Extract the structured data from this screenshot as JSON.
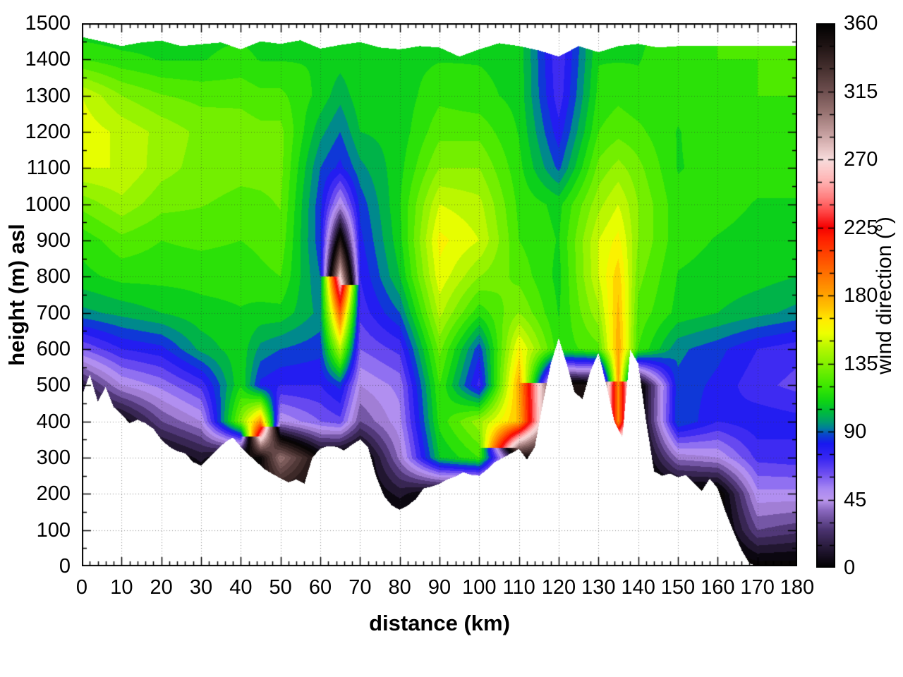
{
  "figure": {
    "background": "#ffffff",
    "border_color": "#000000",
    "grid_color": "#555555",
    "no_data_color": "#ffffff"
  },
  "axes": {
    "x": {
      "label": "distance (km)",
      "min": 0,
      "max": 180,
      "tick_values": [
        0,
        10,
        20,
        30,
        40,
        50,
        60,
        70,
        80,
        90,
        100,
        110,
        120,
        130,
        140,
        150,
        160,
        170,
        180
      ],
      "tick_labels": [
        "0",
        "10",
        "20",
        "30",
        "40",
        "50",
        "60",
        "70",
        "80",
        "90",
        "100",
        "110",
        "120",
        "130",
        "140",
        "150",
        "160",
        "170",
        "180"
      ],
      "minor_step": 2
    },
    "y": {
      "label": "height (m) asl",
      "min": 0,
      "max": 1500,
      "tick_values": [
        0,
        100,
        200,
        300,
        400,
        500,
        600,
        700,
        800,
        900,
        1000,
        1100,
        1200,
        1300,
        1400,
        1500
      ],
      "tick_labels": [
        "0",
        "100",
        "200",
        "300",
        "400",
        "500",
        "600",
        "700",
        "800",
        "900",
        "1000",
        "1100",
        "1200",
        "1300",
        "1400",
        "1500"
      ],
      "minor_step": 50
    },
    "colorbar": {
      "label": "wind direction (°)",
      "min": 0,
      "max": 360,
      "tick_values": [
        0,
        45,
        90,
        135,
        180,
        225,
        270,
        315,
        360
      ],
      "tick_labels": [
        "0",
        "45",
        "90",
        "135",
        "180",
        "225",
        "270",
        "315",
        "360"
      ],
      "minor_step": 15
    }
  },
  "chart_data": {
    "type": "heatmap",
    "title": "",
    "xlabel": "distance (km)",
    "ylabel": "height (m) asl",
    "zlabel": "wind direction (°)",
    "xlim": [
      0,
      180
    ],
    "ylim": [
      0,
      1500
    ],
    "zlim": [
      0,
      360
    ],
    "grid": "dotted major gridlines drawn over field",
    "band_step_deg": 7.5,
    "grid_x_km": [
      0,
      10,
      20,
      30,
      40,
      45,
      50,
      60,
      65,
      70,
      80,
      90,
      100,
      110,
      120,
      130,
      135,
      140,
      150,
      160,
      170,
      180
    ],
    "grid_y_m": [
      0,
      100,
      200,
      300,
      400,
      500,
      600,
      700,
      800,
      900,
      1000,
      1100,
      1200,
      1300,
      1400,
      1500
    ],
    "direction_deg_columns": [
      [
        350,
        350,
        350,
        350,
        355,
        15,
        60,
        95,
        110,
        115,
        130,
        150,
        155,
        150,
        120,
        105
      ],
      [
        350,
        350,
        350,
        350,
        0,
        45,
        75,
        100,
        115,
        125,
        140,
        150,
        148,
        135,
        115,
        105
      ],
      [
        350,
        350,
        350,
        355,
        30,
        55,
        80,
        105,
        115,
        120,
        130,
        138,
        140,
        128,
        112,
        108
      ],
      [
        350,
        350,
        350,
        10,
        45,
        70,
        100,
        110,
        115,
        122,
        128,
        132,
        133,
        125,
        112,
        110
      ],
      [
        350,
        350,
        340,
        350,
        135,
        112,
        110,
        112,
        115,
        120,
        125,
        130,
        132,
        125,
        115,
        110
      ],
      [
        350,
        350,
        350,
        355,
        185,
        80,
        95,
        110,
        118,
        122,
        126,
        130,
        130,
        122,
        112,
        108
      ],
      [
        350,
        350,
        350,
        300,
        45,
        75,
        90,
        110,
        120,
        125,
        128,
        130,
        130,
        122,
        112,
        108
      ],
      [
        355,
        355,
        355,
        355,
        60,
        75,
        85,
        95,
        90,
        85,
        85,
        90,
        100,
        110,
        112,
        110
      ],
      [
        355,
        355,
        355,
        350,
        65,
        85,
        145,
        200,
        270,
        345,
        45,
        80,
        90,
        100,
        108,
        110
      ],
      [
        355,
        355,
        355,
        350,
        30,
        45,
        60,
        70,
        75,
        80,
        85,
        95,
        105,
        110,
        112,
        110
      ],
      [
        350,
        350,
        10,
        40,
        50,
        55,
        70,
        90,
        105,
        110,
        112,
        110,
        108,
        108,
        110,
        112
      ],
      [
        355,
        355,
        355,
        105,
        115,
        120,
        130,
        145,
        155,
        160,
        150,
        135,
        125,
        118,
        112,
        110
      ],
      [
        350,
        350,
        350,
        120,
        140,
        72,
        85,
        115,
        135,
        150,
        145,
        135,
        125,
        115,
        112,
        110
      ],
      [
        350,
        350,
        355,
        355,
        175,
        180,
        160,
        135,
        125,
        120,
        118,
        115,
        112,
        110,
        110,
        108
      ],
      [
        350,
        350,
        350,
        350,
        350,
        350,
        115,
        112,
        110,
        112,
        110,
        88,
        78,
        70,
        68,
        66
      ],
      [
        350,
        350,
        350,
        350,
        350,
        350,
        125,
        140,
        150,
        150,
        140,
        130,
        120,
        115,
        112,
        110
      ],
      [
        350,
        350,
        350,
        355,
        185,
        185,
        180,
        175,
        170,
        160,
        150,
        138,
        125,
        118,
        112,
        110
      ],
      [
        350,
        350,
        350,
        350,
        350,
        350,
        120,
        125,
        130,
        135,
        135,
        130,
        122,
        115,
        112,
        110
      ],
      [
        355,
        350,
        350,
        40,
        90,
        88,
        92,
        110,
        112,
        115,
        115,
        112,
        112,
        115,
        118,
        118
      ],
      [
        350,
        350,
        350,
        45,
        75,
        80,
        85,
        105,
        110,
        112,
        115,
        115,
        118,
        118,
        120,
        120
      ],
      [
        355,
        30,
        50,
        70,
        80,
        70,
        75,
        100,
        108,
        110,
        112,
        115,
        118,
        120,
        120,
        120
      ],
      [
        355,
        25,
        50,
        72,
        78,
        65,
        70,
        95,
        105,
        110,
        112,
        115,
        118,
        120,
        120,
        120
      ]
    ],
    "terrain_step_km": 2,
    "terrain_height_m": [
      470,
      530,
      455,
      495,
      440,
      420,
      395,
      405,
      395,
      380,
      350,
      330,
      318,
      312,
      288,
      278,
      300,
      322,
      342,
      356,
      330,
      308,
      288,
      268,
      255,
      243,
      232,
      240,
      228,
      300,
      325,
      332,
      330,
      320,
      336,
      350,
      330,
      250,
      195,
      168,
      156,
      168,
      185,
      215,
      220,
      228,
      240,
      248,
      260,
      252,
      250,
      268,
      288,
      300,
      312,
      324,
      295,
      330,
      450,
      560,
      630,
      560,
      480,
      462,
      540,
      590,
      500,
      400,
      355,
      598,
      560,
      400,
      262,
      250,
      256,
      246,
      252,
      230,
      208,
      242,
      215,
      150,
      95,
      45,
      8,
      0,
      0,
      0,
      0,
      0,
      0
    ],
    "data_top_step_km": 5,
    "data_top_m": [
      1462,
      1450,
      1437,
      1447,
      1452,
      1437,
      1442,
      1447,
      1428,
      1450,
      1443,
      1453,
      1430,
      1440,
      1448,
      1433,
      1428,
      1437,
      1433,
      1408,
      1428,
      1445,
      1437,
      1425,
      1408,
      1437,
      1420,
      1437,
      1443,
      1433,
      1437,
      1437,
      1437,
      1437,
      1437,
      1437,
      1437
    ],
    "colormap_cyclic_stops": [
      [
        0,
        "#000000"
      ],
      [
        12,
        "#231733"
      ],
      [
        25,
        "#4b3370"
      ],
      [
        38,
        "#8a68c0"
      ],
      [
        45,
        "#bb98ee"
      ],
      [
        52,
        "#a888f2"
      ],
      [
        62,
        "#7050f0"
      ],
      [
        72,
        "#3a28f2"
      ],
      [
        82,
        "#1818f0"
      ],
      [
        88,
        "#0b45cc"
      ],
      [
        92,
        "#007c9e"
      ],
      [
        97,
        "#00a06a"
      ],
      [
        103,
        "#00bb3c"
      ],
      [
        110,
        "#0ed414"
      ],
      [
        120,
        "#3ce800"
      ],
      [
        133,
        "#7cf000"
      ],
      [
        145,
        "#b4f600"
      ],
      [
        155,
        "#eeff00"
      ],
      [
        163,
        "#ffee00"
      ],
      [
        172,
        "#ffc400"
      ],
      [
        180,
        "#ffa400"
      ],
      [
        192,
        "#ff7a00"
      ],
      [
        205,
        "#ff4c00"
      ],
      [
        218,
        "#ff1e00"
      ],
      [
        225,
        "#f40000"
      ],
      [
        235,
        "#ff4444"
      ],
      [
        245,
        "#ff8080"
      ],
      [
        255,
        "#ffb0b0"
      ],
      [
        263,
        "#fcc9c9"
      ],
      [
        270,
        "#f7dcdc"
      ],
      [
        278,
        "#e3bfbf"
      ],
      [
        290,
        "#bb9595"
      ],
      [
        302,
        "#95716f"
      ],
      [
        315,
        "#6e4f4f"
      ],
      [
        330,
        "#46302f"
      ],
      [
        345,
        "#201414"
      ],
      [
        360,
        "#000000"
      ]
    ],
    "notable_features": [
      "yellow patch (dir ~150-160) at 0-12 km, 1000-1300 m",
      "full 360-degree rotor with red/white/black core at 60-70 km, 650-950 m",
      "large blue (dir ~45-90) boundary layer over valleys, strongest 57-90 km below 650 m",
      "dark near-surface layer (dir ~350-360) with lavender layer above along terrain",
      "orange plume (dir ~180) descending into valley at 131-139 km, 300-1000 m",
      "blue streak aloft at 116-120 km, 1100-1500 m",
      "blocky blue region at 165-180 km, 380-620 m",
      "terrain white mask from ~470 m at 0 km to sea level beyond 168 km"
    ]
  }
}
